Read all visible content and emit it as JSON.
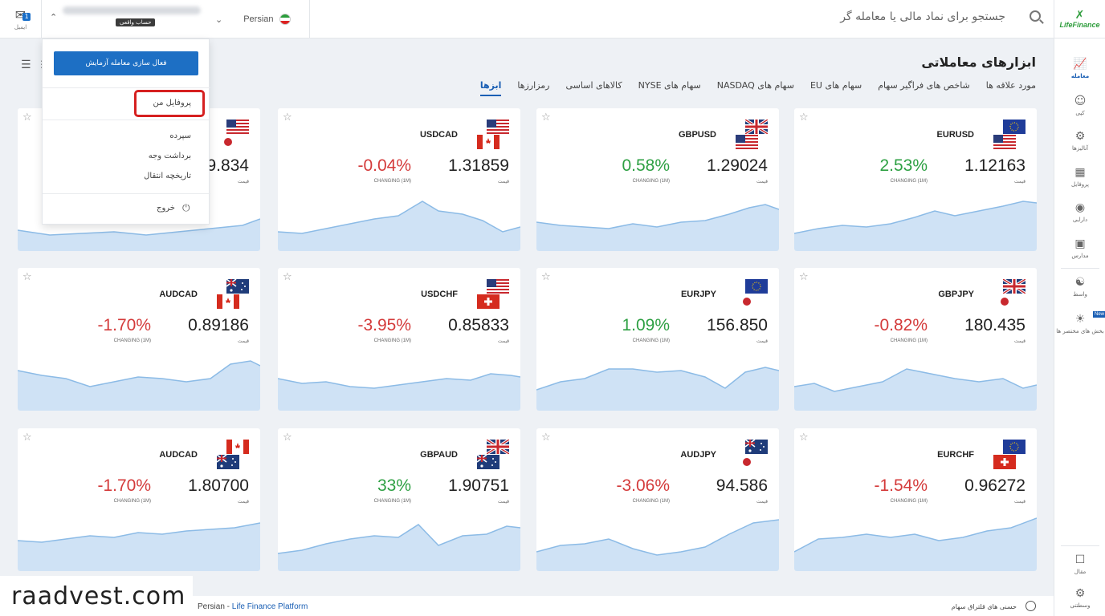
{
  "header": {
    "notif_label": "ایمیل",
    "notif_count": "1",
    "account_tag": "حساب واقعی",
    "language": "Persian",
    "search_placeholder": "جستجو برای نماد مالی یا معامله گر"
  },
  "sidebar": {
    "logo_text": "LifeFinance",
    "items": [
      {
        "label": "معامله",
        "icon": "chart-icon"
      },
      {
        "label": "کپی",
        "icon": "person-icon"
      },
      {
        "label": "آنالیزها",
        "icon": "analysis-icon"
      },
      {
        "label": "پروفایل",
        "icon": "id-card-icon"
      },
      {
        "label": "دارایی",
        "icon": "coin-icon"
      },
      {
        "label": "مدارس",
        "icon": "monitor-icon"
      },
      {
        "label": "واسط",
        "icon": "handshake-icon"
      },
      {
        "label": "بخش های مختصر ها",
        "icon": "bulb-icon",
        "tag": "New"
      },
      {
        "label": "مقال",
        "icon": "chat-icon"
      },
      {
        "label": "وسطتنی",
        "icon": "gear-icon"
      }
    ]
  },
  "page": {
    "title": "ابزارهای معاملاتی",
    "tabs": [
      "ابزها",
      "رمزارزها",
      "کالاهای اساسی",
      "سهام های NYSE",
      "سهام های NASDAQ",
      "سهام های EU",
      "شاخص های فراگیر سهام",
      "مورد علاقه ها"
    ]
  },
  "dropdown": {
    "activate_button": "فعال سازی معامله آزمایش",
    "items": [
      "پروفایل من",
      "سپرده",
      "برداشت وجه",
      "تاریخچه انتقال"
    ],
    "logout": "خروج"
  },
  "cards": [
    {
      "symbol": "EURUSD",
      "price": "1.12163",
      "change": "2.53%",
      "dir": "up",
      "flags": [
        "eu",
        "us"
      ]
    },
    {
      "symbol": "GBPUSD",
      "price": "1.29024",
      "change": "0.58%",
      "dir": "up",
      "flags": [
        "gb",
        "us"
      ]
    },
    {
      "symbol": "USDCAD",
      "price": "1.31859",
      "change": "-0.04%",
      "dir": "down",
      "flags": [
        "us",
        "ca"
      ]
    },
    {
      "symbol": "",
      "price": "9.834",
      "change": "",
      "dir": "down",
      "flags": [
        "us",
        "jp"
      ]
    },
    {
      "symbol": "GBPJPY",
      "price": "180.435",
      "change": "-0.82%",
      "dir": "down",
      "flags": [
        "gb",
        "jp"
      ]
    },
    {
      "symbol": "EURJPY",
      "price": "156.850",
      "change": "1.09%",
      "dir": "up",
      "flags": [
        "eu",
        "jp"
      ]
    },
    {
      "symbol": "USDCHF",
      "price": "0.85833",
      "change": "-3.95%",
      "dir": "down",
      "flags": [
        "us",
        "ch"
      ]
    },
    {
      "symbol": "AUDCAD",
      "price": "0.89186",
      "change": "-1.70%",
      "dir": "down",
      "flags": [
        "au",
        "ca"
      ]
    },
    {
      "symbol": "EURCHF",
      "price": "0.96272",
      "change": "-1.54%",
      "dir": "down",
      "flags": [
        "eu",
        "ch"
      ]
    },
    {
      "symbol": "AUDJPY",
      "price": "94.586",
      "change": "-3.06%",
      "dir": "down",
      "flags": [
        "au",
        "jp"
      ]
    },
    {
      "symbol": "GBPAUD",
      "price": "1.90751",
      "change": "33%",
      "dir": "up",
      "flags": [
        "gb",
        "au"
      ]
    },
    {
      "symbol": "AUDCAD",
      "price": "1.80700",
      "change": "-1.70%",
      "dir": "down",
      "flags": [
        "ca",
        "au"
      ]
    }
  ],
  "card_labels": {
    "price_label": "قیمت",
    "change_label": "CHANGING (1M)",
    "change_label_alt": "CHANGING (1M)"
  },
  "colors": {
    "accent": "#1a5fb4",
    "up": "#2ea043",
    "down": "#d43b3b",
    "chart_fill": "#cfe2f5",
    "chart_line": "#8cbbe6"
  },
  "footer": {
    "left_lang": "Persian",
    "left_sep": " - ",
    "left_link": "Life Finance Platform",
    "right_text": "حسنی های قلتراق سهام"
  },
  "watermark": "raadvest.com"
}
